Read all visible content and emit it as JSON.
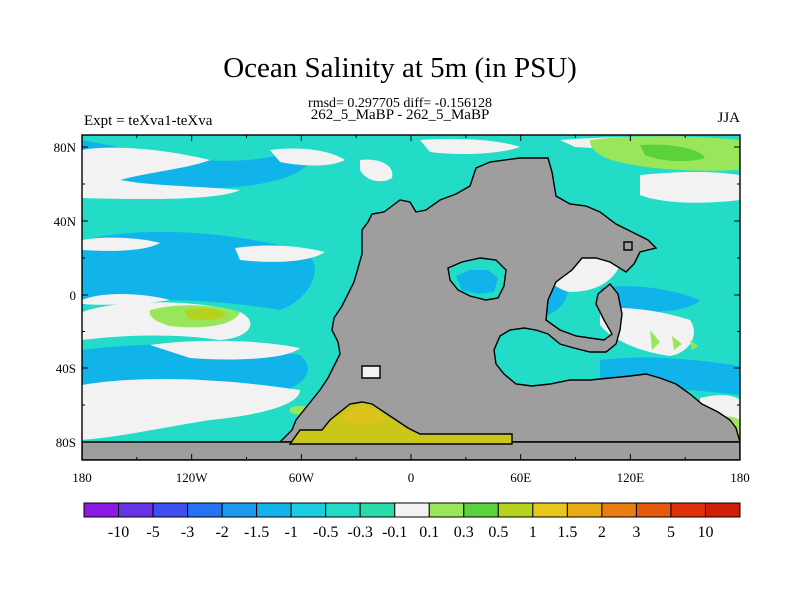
{
  "title": "Ocean Salinity at 5m (in PSU)",
  "stats_line": "rmsd= 0.297705 diff= -0.156128",
  "subtitle": "262_5_MaBP - 262_5_MaBP",
  "left_label": "Expt = teXva1-teXva",
  "right_label": "JJA",
  "lat_ticks": [
    "80N",
    "40N",
    "0",
    "40S",
    "80S"
  ],
  "lon_ticks": [
    "180",
    "120W",
    "60W",
    "0",
    "60E",
    "120E",
    "180"
  ],
  "colorbar": {
    "labels": [
      "-10",
      "-5",
      "-3",
      "-2",
      "-1.5",
      "-1",
      "-0.5",
      "-0.3",
      "-0.1",
      "0.1",
      "0.3",
      "0.5",
      "1",
      "1.5",
      "2",
      "3",
      "5",
      "10"
    ],
    "colors": [
      "#8c1ae6",
      "#6633e6",
      "#3e4ff0",
      "#2673f2",
      "#1a99ee",
      "#10b4ea",
      "#1ccde0",
      "#22dcc8",
      "#28dcaa",
      "#f2f2f2",
      "#9ae65a",
      "#5ad23c",
      "#b4d21e",
      "#e6c81a",
      "#eaaa14",
      "#e67e12",
      "#e35a0e",
      "#e0300a",
      "#d01f08"
    ]
  },
  "colors": {
    "land": "#9e9e9e",
    "ocean_base": "#22dcc8",
    "ocean_fresh": "#10b4ea",
    "near_zero": "#f2f2f2",
    "salty_low": "#9ae65a",
    "salty_mid": "#b4d21e"
  }
}
